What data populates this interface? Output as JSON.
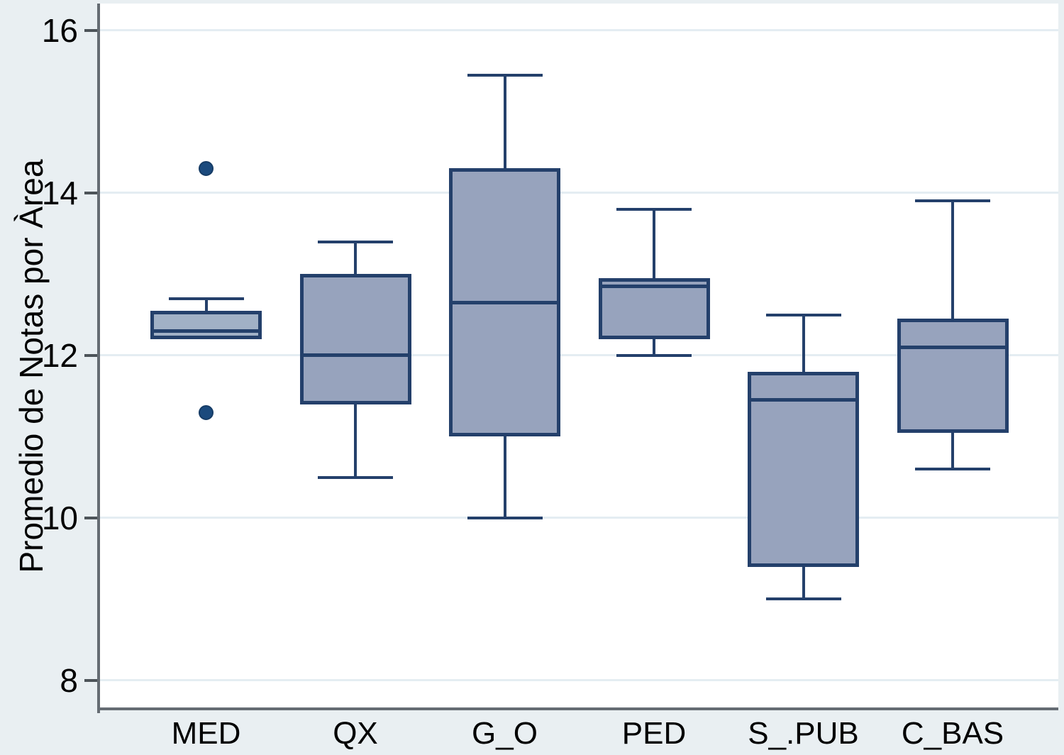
{
  "chart_data": {
    "type": "boxplot",
    "title": "",
    "xlabel": "",
    "ylabel": "Promedio de Notas por Àrea",
    "ylim": [
      7.65,
      16.33
    ],
    "yticks": [
      16,
      14,
      12,
      10,
      8
    ],
    "grid": true,
    "legend": false,
    "categories": [
      "MED",
      "QX",
      "G_O",
      "PED",
      "S_.PUB",
      "C_BAS"
    ],
    "series": [
      {
        "category": "MED",
        "whisker_low": 12.2,
        "q1": 12.2,
        "median": 12.3,
        "q3": 12.55,
        "whisker_high": 12.7,
        "outliers": [
          14.3,
          11.3
        ],
        "fill": "#a1b1c6"
      },
      {
        "category": "QX",
        "whisker_low": 10.5,
        "q1": 11.4,
        "median": 12.0,
        "q3": 13.0,
        "whisker_high": 13.4,
        "outliers": [],
        "fill": "#97a3bd"
      },
      {
        "category": "G_O",
        "whisker_low": 10.0,
        "q1": 11.0,
        "median": 12.65,
        "q3": 14.3,
        "whisker_high": 15.45,
        "outliers": [],
        "fill": "#97a3bd"
      },
      {
        "category": "PED",
        "whisker_low": 12.0,
        "q1": 12.2,
        "median": 12.85,
        "q3": 12.95,
        "whisker_high": 13.8,
        "outliers": [],
        "fill": "#97a3bd"
      },
      {
        "category": "S_.PUB",
        "whisker_low": 9.0,
        "q1": 9.4,
        "median": 11.45,
        "q3": 11.8,
        "whisker_high": 12.5,
        "outliers": [],
        "fill": "#97a3bd"
      },
      {
        "category": "C_BAS",
        "whisker_low": 10.6,
        "q1": 11.05,
        "median": 12.1,
        "q3": 12.45,
        "whisker_high": 13.9,
        "outliers": [],
        "fill": "#97a3bd"
      }
    ],
    "colors": {
      "background": "#e9eff2",
      "plot_background": "#ffffff",
      "gridline": "#e4edf2",
      "axis_line": "#656c73",
      "box_border": "#24406b",
      "box_fill": "#97a3bd",
      "outlier": "#1b4a7d",
      "text": "#000000"
    }
  }
}
